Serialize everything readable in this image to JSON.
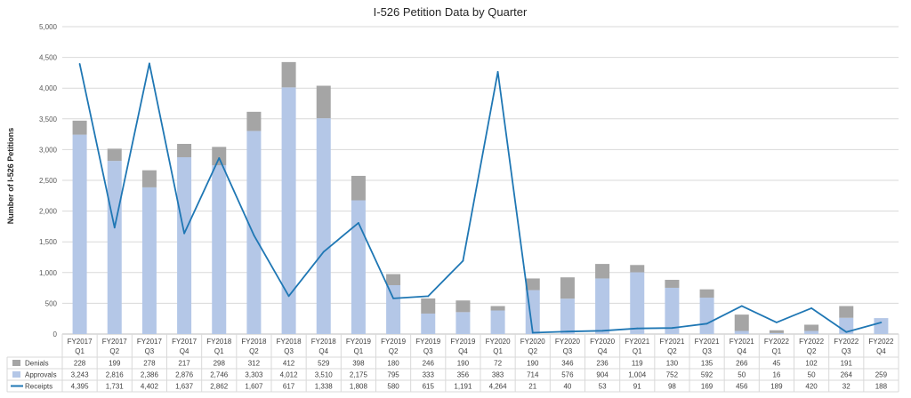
{
  "chart_data": {
    "type": "bar",
    "title": "I-526 Petition Data by Quarter",
    "ylabel": "Number of I-526 Petitions",
    "ylim": [
      0,
      5000
    ],
    "yticks": [
      "0",
      "500",
      "1,000",
      "1,500",
      "2,000",
      "2,500",
      "3,000",
      "3,500",
      "4,000",
      "4,500",
      "5,000"
    ],
    "categories": [
      [
        "FY2017",
        "Q1"
      ],
      [
        "FY2017",
        "Q2"
      ],
      [
        "FY2017",
        "Q3"
      ],
      [
        "FY2017",
        "Q4"
      ],
      [
        "FY2018",
        "Q1"
      ],
      [
        "FY2018",
        "Q2"
      ],
      [
        "FY2018",
        "Q3"
      ],
      [
        "FY2018",
        "Q4"
      ],
      [
        "FY2019",
        "Q1"
      ],
      [
        "FY2019",
        "Q2"
      ],
      [
        "FY2019",
        "Q3"
      ],
      [
        "FY2019",
        "Q4"
      ],
      [
        "FY2020",
        "Q1"
      ],
      [
        "FY2020",
        "Q2"
      ],
      [
        "FY2020",
        "Q3"
      ],
      [
        "FY2020",
        "Q4"
      ],
      [
        "FY2021",
        "Q1"
      ],
      [
        "FY2021",
        "Q2"
      ],
      [
        "FY2021",
        "Q3"
      ],
      [
        "FY2021",
        "Q4"
      ],
      [
        "FY2022",
        "Q1"
      ],
      [
        "FY2022",
        "Q2"
      ],
      [
        "FY2022",
        "Q3"
      ],
      [
        "FY2022",
        "Q4"
      ]
    ],
    "series": [
      {
        "name": "Denials",
        "kind": "bar-stacked",
        "color": "#a5a5a5",
        "values": [
          228,
          199,
          278,
          217,
          298,
          312,
          412,
          529,
          398,
          180,
          246,
          190,
          72,
          190,
          346,
          236,
          119,
          130,
          135,
          266,
          45,
          102,
          191,
          null
        ],
        "labels": [
          "228",
          "199",
          "278",
          "217",
          "298",
          "312",
          "412",
          "529",
          "398",
          "180",
          "246",
          "190",
          "72",
          "190",
          "346",
          "236",
          "119",
          "130",
          "135",
          "266",
          "45",
          "102",
          "191",
          ""
        ]
      },
      {
        "name": "Approvals",
        "kind": "bar-stacked",
        "color": "#b4c7e7",
        "values": [
          3243,
          2816,
          2386,
          2876,
          2746,
          3303,
          4012,
          3510,
          2175,
          795,
          333,
          356,
          383,
          714,
          576,
          904,
          1004,
          752,
          592,
          50,
          16,
          50,
          264,
          259
        ],
        "labels": [
          "3,243",
          "2,816",
          "2,386",
          "2,876",
          "2,746",
          "3,303",
          "4,012",
          "3,510",
          "2,175",
          "795",
          "333",
          "356",
          "383",
          "714",
          "576",
          "904",
          "1,004",
          "752",
          "592",
          "50",
          "16",
          "50",
          "264",
          "259"
        ]
      },
      {
        "name": "Receipts",
        "kind": "line",
        "color": "#1f77b4",
        "values": [
          4395,
          1731,
          4402,
          1637,
          2862,
          1607,
          617,
          1338,
          1808,
          580,
          615,
          1191,
          4264,
          21,
          40,
          53,
          91,
          98,
          169,
          456,
          189,
          420,
          32,
          188
        ],
        "labels": [
          "4,395",
          "1,731",
          "4,402",
          "1,637",
          "2,862",
          "1,607",
          "617",
          "1,338",
          "1,808",
          "580",
          "615",
          "1,191",
          "4,264",
          "21",
          "40",
          "53",
          "91",
          "98",
          "169",
          "456",
          "189",
          "420",
          "32",
          "188"
        ]
      }
    ],
    "grid": true,
    "legend": "data-table-left"
  }
}
